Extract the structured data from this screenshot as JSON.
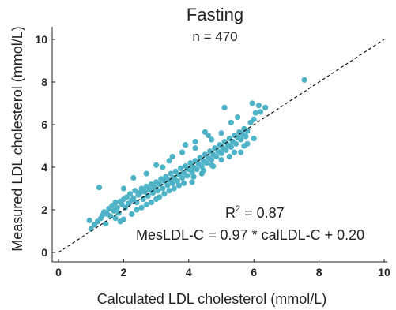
{
  "chart_data": {
    "type": "scatter",
    "title": "Fasting",
    "subtitle": "n = 470",
    "xlabel": "Calculated LDL cholesterol (mmol/L)",
    "ylabel": "Measured LDL cholesterol (mmol/L)",
    "xlim": [
      0,
      10
    ],
    "ylim": [
      0,
      10
    ],
    "x_ticks": [
      0,
      2,
      4,
      6,
      8,
      10
    ],
    "y_ticks": [
      0,
      2,
      4,
      6,
      8,
      10
    ],
    "x_tick_labels": [
      "0",
      "2",
      "4",
      "6",
      "8",
      "10"
    ],
    "y_tick_labels": [
      "0",
      "2",
      "4",
      "6",
      "8",
      "10"
    ],
    "grid": false,
    "point_color": "#4fb3c8",
    "reference_line": {
      "type": "identity",
      "style": "dashed",
      "from": [
        0,
        0
      ],
      "to": [
        10,
        10
      ]
    },
    "annotation_r2_base": "R",
    "annotation_r2_sup": "2",
    "annotation_r2_value": " = 0.87",
    "annotation_equation": "MesLDL-C = 0.97 * calLDL-C + 0.20",
    "regression": {
      "slope": 0.97,
      "intercept": 0.2,
      "r2": 0.87
    },
    "n": 470,
    "points": [
      [
        0.95,
        1.5
      ],
      [
        1.0,
        1.1
      ],
      [
        1.1,
        1.3
      ],
      [
        1.2,
        1.45
      ],
      [
        1.3,
        1.6
      ],
      [
        1.25,
        3.05
      ],
      [
        1.35,
        1.75
      ],
      [
        1.4,
        1.9
      ],
      [
        1.45,
        1.35
      ],
      [
        1.5,
        1.8
      ],
      [
        1.55,
        2.05
      ],
      [
        1.6,
        1.7
      ],
      [
        1.65,
        2.2
      ],
      [
        1.7,
        1.95
      ],
      [
        1.75,
        2.35
      ],
      [
        1.8,
        2.1
      ],
      [
        1.85,
        1.85
      ],
      [
        1.9,
        2.4
      ],
      [
        1.95,
        2.25
      ],
      [
        2.0,
        2.5
      ],
      [
        2.05,
        2.1
      ],
      [
        2.1,
        2.6
      ],
      [
        2.15,
        2.3
      ],
      [
        2.2,
        2.75
      ],
      [
        2.25,
        2.45
      ],
      [
        2.3,
        2.55
      ],
      [
        2.35,
        2.9
      ],
      [
        2.4,
        2.35
      ],
      [
        2.45,
        2.7
      ],
      [
        2.5,
        2.8
      ],
      [
        2.55,
        3.0
      ],
      [
        2.6,
        2.5
      ],
      [
        2.65,
        2.85
      ],
      [
        2.7,
        3.1
      ],
      [
        2.75,
        2.65
      ],
      [
        2.8,
        2.95
      ],
      [
        2.85,
        3.2
      ],
      [
        2.9,
        2.8
      ],
      [
        2.95,
        3.05
      ],
      [
        3.0,
        3.3
      ],
      [
        3.05,
        2.9
      ],
      [
        3.1,
        3.2
      ],
      [
        3.15,
        3.45
      ],
      [
        3.2,
        3.0
      ],
      [
        3.25,
        3.35
      ],
      [
        3.3,
        3.55
      ],
      [
        3.35,
        3.15
      ],
      [
        3.4,
        3.4
      ],
      [
        3.45,
        3.7
      ],
      [
        3.5,
        3.25
      ],
      [
        3.55,
        3.5
      ],
      [
        3.6,
        3.8
      ],
      [
        3.65,
        3.35
      ],
      [
        3.7,
        3.65
      ],
      [
        3.75,
        3.95
      ],
      [
        3.8,
        3.5
      ],
      [
        3.85,
        3.75
      ],
      [
        3.9,
        4.05
      ],
      [
        3.95,
        3.6
      ],
      [
        4.0,
        3.9
      ],
      [
        4.05,
        4.2
      ],
      [
        4.1,
        3.75
      ],
      [
        4.15,
        4.0
      ],
      [
        4.2,
        4.3
      ],
      [
        4.25,
        3.9
      ],
      [
        4.3,
        4.15
      ],
      [
        4.35,
        4.45
      ],
      [
        4.4,
        4.05
      ],
      [
        4.45,
        4.3
      ],
      [
        4.5,
        4.6
      ],
      [
        4.55,
        4.2
      ],
      [
        4.6,
        4.45
      ],
      [
        4.65,
        4.75
      ],
      [
        4.7,
        4.35
      ],
      [
        4.75,
        4.6
      ],
      [
        4.8,
        4.9
      ],
      [
        4.85,
        4.5
      ],
      [
        4.9,
        4.75
      ],
      [
        4.95,
        5.05
      ],
      [
        5.0,
        4.65
      ],
      [
        5.05,
        4.9
      ],
      [
        5.1,
        5.2
      ],
      [
        5.15,
        4.8
      ],
      [
        5.2,
        5.05
      ],
      [
        5.25,
        5.35
      ],
      [
        5.3,
        4.95
      ],
      [
        5.35,
        5.2
      ],
      [
        5.4,
        5.5
      ],
      [
        5.45,
        5.1
      ],
      [
        5.5,
        5.4
      ],
      [
        5.55,
        5.65
      ],
      [
        5.6,
        5.3
      ],
      [
        5.65,
        5.55
      ],
      [
        5.7,
        5.8
      ],
      [
        5.75,
        5.45
      ],
      [
        5.8,
        5.7
      ],
      [
        5.3,
        6.1
      ],
      [
        5.5,
        6.35
      ],
      [
        5.1,
        6.8
      ],
      [
        5.9,
        6.1
      ],
      [
        6.0,
        6.25
      ],
      [
        6.05,
        6.55
      ],
      [
        5.95,
        7.0
      ],
      [
        6.15,
        6.9
      ],
      [
        6.2,
        6.6
      ],
      [
        7.55,
        8.1
      ],
      [
        6.35,
        6.8
      ],
      [
        4.5,
        5.65
      ],
      [
        4.2,
        5.2
      ],
      [
        3.9,
        5.05
      ],
      [
        4.75,
        4.05
      ],
      [
        4.4,
        3.7
      ],
      [
        4.1,
        3.3
      ],
      [
        4.6,
        5.5
      ],
      [
        5.6,
        4.7
      ],
      [
        5.25,
        4.5
      ],
      [
        5.8,
        5.1
      ],
      [
        2.0,
        1.55
      ],
      [
        1.75,
        1.6
      ],
      [
        2.25,
        1.8
      ],
      [
        2.55,
        2.1
      ],
      [
        2.85,
        2.35
      ],
      [
        3.1,
        2.6
      ],
      [
        3.4,
        2.9
      ],
      [
        3.7,
        3.15
      ],
      [
        3.0,
        4.1
      ],
      [
        3.4,
        4.3
      ],
      [
        2.3,
        3.5
      ],
      [
        2.7,
        3.7
      ],
      [
        2.0,
        3.0
      ],
      [
        1.9,
        1.45
      ],
      [
        2.4,
        2.0
      ],
      [
        2.7,
        2.25
      ],
      [
        3.0,
        2.5
      ],
      [
        3.25,
        2.75
      ],
      [
        3.55,
        3.0
      ],
      [
        3.85,
        3.25
      ],
      [
        4.15,
        3.55
      ],
      [
        4.45,
        3.85
      ],
      [
        4.7,
        4.1
      ],
      [
        5.0,
        4.35
      ],
      [
        5.4,
        4.7
      ],
      [
        5.7,
        5.0
      ],
      [
        6.0,
        5.35
      ],
      [
        3.5,
        4.5
      ],
      [
        3.8,
        4.7
      ],
      [
        4.2,
        4.9
      ],
      [
        4.7,
        5.3
      ],
      [
        5.0,
        5.6
      ],
      [
        3.2,
        4.0
      ]
    ]
  }
}
